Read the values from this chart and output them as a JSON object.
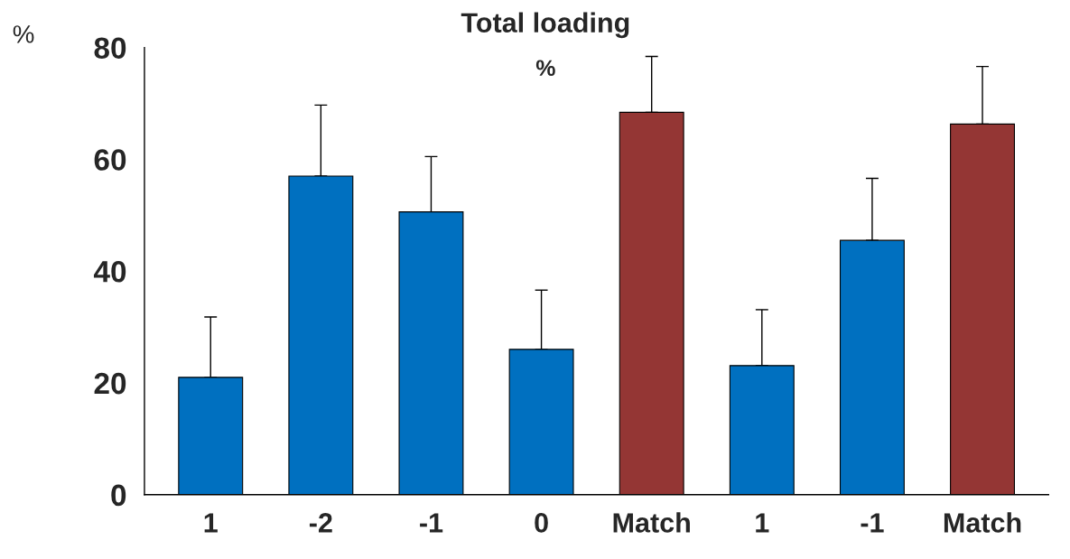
{
  "chart_data": {
    "type": "bar",
    "title": "Total loading",
    "subtitle": "%",
    "ylabel": "%",
    "categories": [
      "1",
      "-2",
      "-1",
      "0",
      "Match",
      "1",
      "-1",
      "Match"
    ],
    "values": [
      21.0,
      57.0,
      50.6,
      26.0,
      68.4,
      23.1,
      45.5,
      66.3
    ],
    "errors": [
      [
        21.0,
        31.8
      ],
      [
        57.0,
        69.7
      ],
      [
        50.6,
        60.5
      ],
      [
        26.0,
        36.6
      ],
      [
        68.4,
        78.4
      ],
      [
        23.1,
        33.1
      ],
      [
        45.5,
        56.6
      ],
      [
        66.3,
        76.6
      ]
    ],
    "colors": [
      "#0070c0",
      "#0070c0",
      "#0070c0",
      "#0070c0",
      "#943634",
      "#0070c0",
      "#0070c0",
      "#943634"
    ],
    "ylim": [
      0,
      80
    ],
    "yticks": [
      0,
      20,
      40,
      60,
      80
    ],
    "grid": false,
    "legend": false
  }
}
